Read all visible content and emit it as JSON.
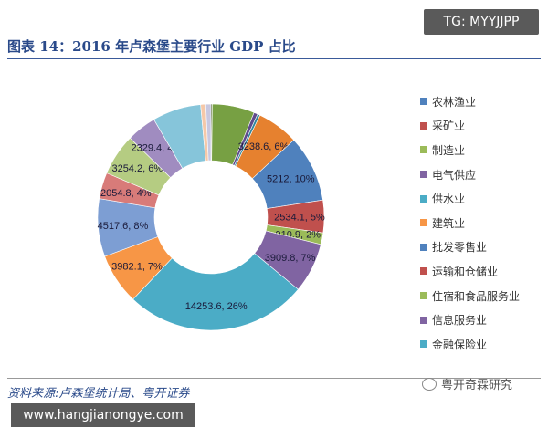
{
  "header": {
    "title": "图表 14：2016 年卢森堡主要行业 GDP 占比",
    "tg_badge": "TG: MYYJJPP"
  },
  "footer": {
    "source": "资料来源:卢森堡统计局、粤开证券",
    "watermark": "粤开奇霖研究",
    "site": "www.hangjianongye.com"
  },
  "chart_data": {
    "type": "pie",
    "donut": true,
    "title": "",
    "slices": [
      {
        "value": 100,
        "color": "#4f6228",
        "label": ""
      },
      {
        "value": 3300,
        "color": "#77a043",
        "label": ""
      },
      {
        "value": 300,
        "color": "#5f4b8b",
        "label": ""
      },
      {
        "value": 200,
        "color": "#31859c",
        "label": ""
      },
      {
        "value": 3238.6,
        "color": "#e6812f",
        "label": "3238.6, 6%"
      },
      {
        "value": 5212,
        "color": "#4f81bd",
        "label": "5212, 10%"
      },
      {
        "value": 2534.1,
        "color": "#c0504d",
        "label": "2534.1, 5%"
      },
      {
        "value": 910.9,
        "color": "#9bbb59",
        "label": "910.9, 2%"
      },
      {
        "value": 3909.8,
        "color": "#8064a2",
        "label": "3909.8, 7%"
      },
      {
        "value": 14253.6,
        "color": "#4bacc6",
        "label": "14253.6, 26%"
      },
      {
        "value": 3982.1,
        "color": "#f79646",
        "label": "3982.1, 7%"
      },
      {
        "value": 4517.6,
        "color": "#7d9ed3",
        "label": "4517.6, 8%"
      },
      {
        "value": 2054.8,
        "color": "#d87b79",
        "label": "2054.8, 4%"
      },
      {
        "value": 3254.2,
        "color": "#b5cc82",
        "label": "3254.2, 6%"
      },
      {
        "value": 2329.4,
        "color": "#a08cc0",
        "label": "2329.4, 4%"
      },
      {
        "value": 3800,
        "color": "#86c5da",
        "label": ""
      },
      {
        "value": 400,
        "color": "#f5c8a8",
        "label": ""
      },
      {
        "value": 400,
        "color": "#c8c8e0",
        "label": ""
      }
    ],
    "legend": [
      {
        "name": "农林渔业",
        "color": "#4f81bd"
      },
      {
        "name": "采矿业",
        "color": "#c0504d"
      },
      {
        "name": "制造业",
        "color": "#9bbb59"
      },
      {
        "name": "电气供应",
        "color": "#8064a2"
      },
      {
        "name": "供水业",
        "color": "#4bacc6"
      },
      {
        "name": "建筑业",
        "color": "#f79646"
      },
      {
        "name": "批发零售业",
        "color": "#4f81bd"
      },
      {
        "name": "运输和仓储业",
        "color": "#c0504d"
      },
      {
        "name": "住宿和食品服务业",
        "color": "#9bbb59"
      },
      {
        "name": "信息服务业",
        "color": "#8064a2"
      },
      {
        "name": "金融保险业",
        "color": "#4bacc6"
      }
    ],
    "legend_position": "right"
  }
}
